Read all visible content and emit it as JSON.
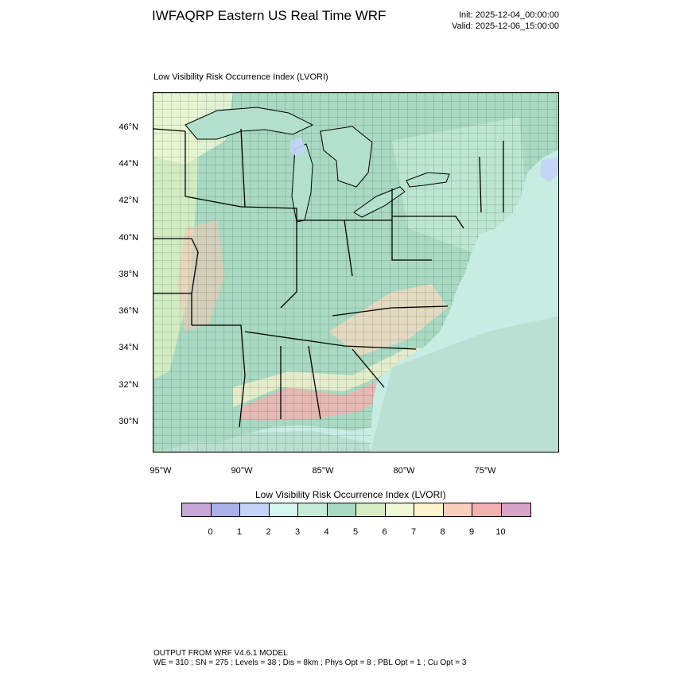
{
  "header": {
    "title": "IWFAQRP Eastern US Real Time WRF",
    "init": "Init: 2025-12-04_00:00:00",
    "valid": "Valid: 2025-12-06_15:00:00"
  },
  "map": {
    "field_label": "Low Visibility Risk Occurrence Index   (LVORI)",
    "lat_labels": [
      "46°N",
      "44°N",
      "42°N",
      "40°N",
      "38°N",
      "36°N",
      "34°N",
      "32°N",
      "30°N"
    ],
    "lon_labels": [
      "95°W",
      "90°W",
      "85°W",
      "80°W",
      "75°W"
    ],
    "colors": {
      "ocean": "#c6ece4",
      "land_base": "#a9d9c2",
      "border": "#000000"
    }
  },
  "legend": {
    "title": "Low Visibility Risk Occurrence Index  (LVORI)",
    "swatches": [
      "#c8a7d8",
      "#aab0e8",
      "#c3d3f6",
      "#d3f6ef",
      "#c5ebd9",
      "#a9d9c2",
      "#d6edc2",
      "#eef8d4",
      "#fdf3cf",
      "#f9cebc",
      "#f0b1b1",
      "#d8a3c7"
    ],
    "ticks": [
      "0",
      "1",
      "2",
      "3",
      "4",
      "5",
      "6",
      "7",
      "8",
      "9",
      "10"
    ]
  },
  "footer": {
    "line1": "OUTPUT FROM WRF V4.6.1 MODEL",
    "line2": "WE = 310 ; SN = 275 ; Levels = 38 ; Dis = 8km ; Phys Opt = 8 ; PBL Opt = 1 ; Cu Opt = 3"
  }
}
